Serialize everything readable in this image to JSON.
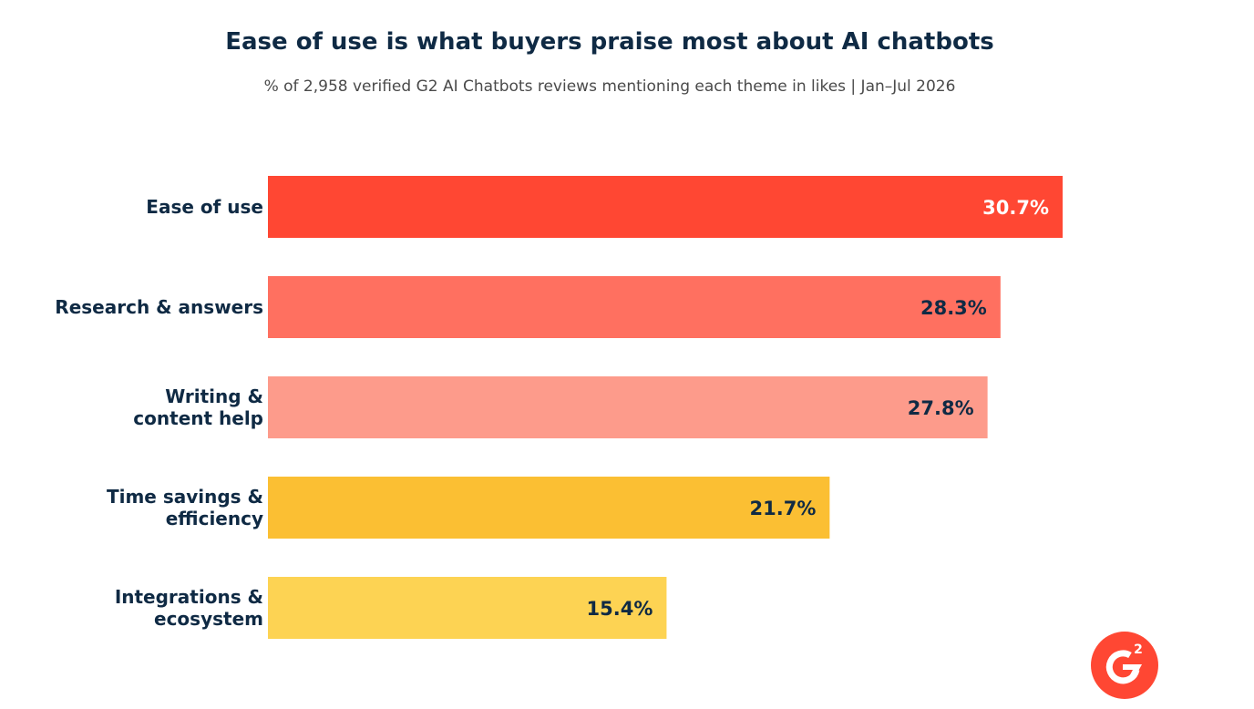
{
  "chart_data": {
    "type": "bar",
    "orientation": "horizontal",
    "title": "Ease of use is what buyers praise most about AI chatbots",
    "subtitle": "% of 2,958 verified G2 AI Chatbots reviews mentioning each theme in likes | Jan–Jul 2026",
    "categories": [
      [
        "Ease of use"
      ],
      [
        "Research & answers"
      ],
      [
        "Writing &",
        "content help"
      ],
      [
        "Time savings &",
        "efficiency"
      ],
      [
        "Integrations &",
        "ecosystem"
      ]
    ],
    "values": [
      30.7,
      28.3,
      27.8,
      21.7,
      15.4
    ],
    "value_labels": [
      "30.7%",
      "28.3%",
      "27.8%",
      "21.7%",
      "15.4%"
    ],
    "bar_colors": [
      "#ff4733",
      "#ff7060",
      "#fd9b8b",
      "#fbbf33",
      "#fdd353"
    ],
    "value_label_colors": [
      "#ffffff",
      "#0f2a44",
      "#0f2a44",
      "#0f2a44",
      "#0f2a44"
    ],
    "xlim": [
      0,
      30.7
    ],
    "grid": false,
    "legend": "none"
  },
  "logo": {
    "mark": "G",
    "superscript": "2",
    "color": "#ff4733"
  }
}
